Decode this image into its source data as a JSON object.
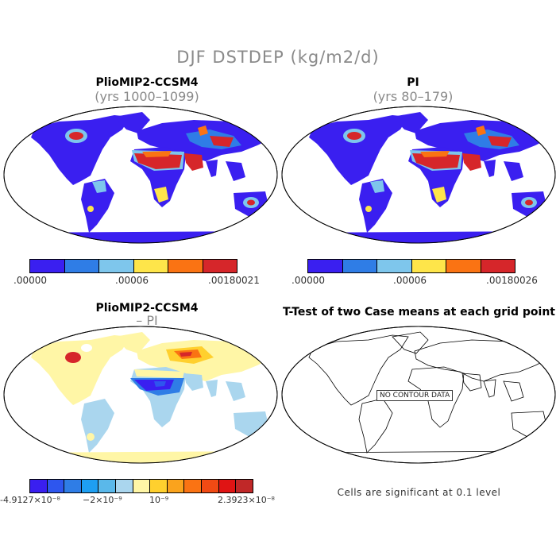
{
  "main_title": "DJF DSTDEP (kg/m2/d)",
  "panels": [
    {
      "title": "PlioMIP2-CCSM4",
      "subtitle": "(yrs 1000–1099)"
    },
    {
      "title": "PI",
      "subtitle": "(yrs 80–179)"
    },
    {
      "title": "PlioMIP2-CCSM4",
      "subtitle": "– PI"
    },
    {
      "title": "T-Test of two Case means at each grid point",
      "subtitle": ""
    }
  ],
  "colorbar_top_left": {
    "colors": [
      "#3a1ff0",
      "#2f7de6",
      "#7ec6ec",
      "#fee54a",
      "#fa7313",
      "#d6262a"
    ],
    "labels": [
      ".00000",
      ".00006",
      ".00180021"
    ]
  },
  "colorbar_top_right": {
    "colors": [
      "#3a1ff0",
      "#2f7de6",
      "#7ec6ec",
      "#fee54a",
      "#fa7313",
      "#d6262a"
    ],
    "labels": [
      ".00000",
      ".00006",
      ".00180026"
    ]
  },
  "colorbar_diff": {
    "colors": [
      "#3a1ff0",
      "#2e56ee",
      "#2f7de6",
      "#1e9ff2",
      "#5ab8ea",
      "#aad6ee",
      "#fff6a6",
      "#ffd02e",
      "#faa31d",
      "#fa7313",
      "#f04a14",
      "#e01414",
      "#c02828"
    ],
    "labels": [
      "-4.9127×10⁻⁸",
      "−2×10⁻⁹",
      "10⁻⁹",
      "2.3923×10⁻⁸"
    ]
  },
  "no_contour_label": "NO CONTOUR DATA",
  "significance_note": "Cells are significant at 0.1 level",
  "map_colors": {
    "ocean": "#ffffff",
    "low": "#3a1ff0",
    "mid": "#2f7de6",
    "light": "#7ec6ec",
    "yellow": "#fee54a",
    "orange": "#fa7313",
    "red": "#d6262a",
    "diff_pos": "#fff6a6",
    "diff_neg": "#aad6ee"
  }
}
